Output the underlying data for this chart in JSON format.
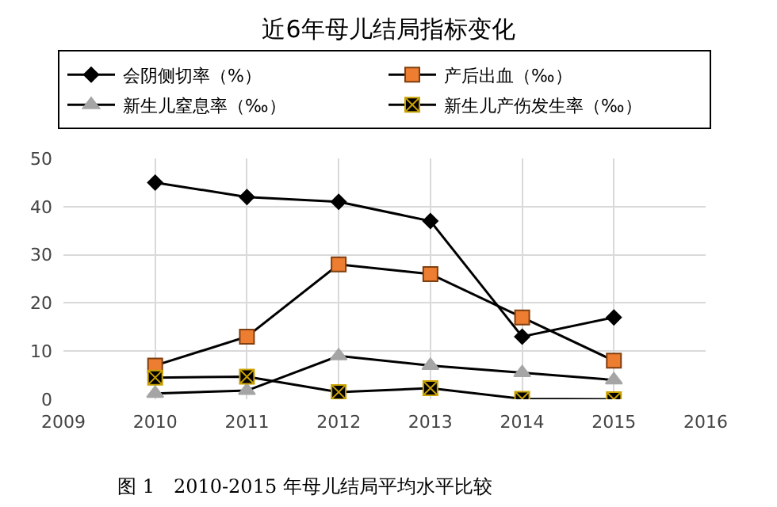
{
  "chart_data": {
    "type": "line",
    "title": "近6年母儿结局指标变化",
    "x": [
      2010,
      2011,
      2012,
      2013,
      2014,
      2015
    ],
    "series": [
      {
        "name": "会阴侧切率（%）",
        "color": "#000000",
        "marker": "diamond",
        "values": [
          45,
          42,
          41,
          37,
          13,
          17
        ]
      },
      {
        "name": "产后出血（‰）",
        "color": "#ed7d31",
        "marker": "square",
        "values": [
          7,
          13,
          28,
          26,
          17,
          8
        ]
      },
      {
        "name": "新生儿窒息率（‰）",
        "color": "#a5a5a5",
        "marker": "triangle",
        "values": [
          1.2,
          1.8,
          9,
          7,
          5.5,
          4
        ]
      },
      {
        "name": "新生儿产伤发生率（‰）",
        "color": "#000000",
        "marker": "cross",
        "values": [
          4.5,
          4.7,
          1.5,
          2.3,
          0.1,
          0
        ]
      }
    ],
    "xlim": [
      2009,
      2016
    ],
    "xticks": [
      2009,
      2010,
      2011,
      2012,
      2013,
      2014,
      2015,
      2016
    ],
    "ylim": [
      0,
      50
    ],
    "yticks": [
      0,
      10,
      20,
      30,
      40,
      50
    ],
    "grid": true,
    "legend": "top",
    "line_style": "solid",
    "annotations": [
      "图 1　2010-2015 年母儿结局平均水平比较"
    ]
  }
}
